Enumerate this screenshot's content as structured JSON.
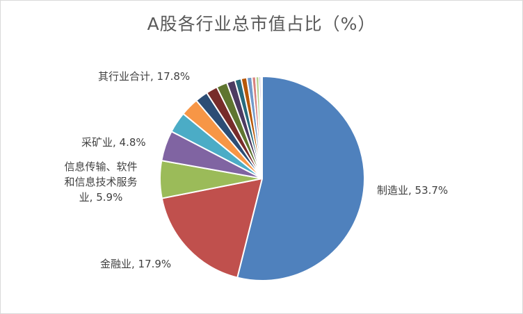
{
  "chart_data": {
    "type": "pie",
    "title": "A股各行业总市值占比（%）",
    "slices": [
      {
        "name": "制造业",
        "value": 53.7,
        "label": "制造业, 53.7%",
        "color": "#4f81bd"
      },
      {
        "name": "金融业",
        "value": 17.9,
        "label": "金融业, 17.9%",
        "color": "#c0504d"
      },
      {
        "name": "信息传输、软件和信息技术服务业",
        "value": 5.9,
        "label_lines": [
          "信息传输、软件",
          "和信息技术服务",
          "业, 5.9%"
        ],
        "color": "#9bbb59"
      },
      {
        "name": "采矿业",
        "value": 4.8,
        "label": "采矿业, 4.8%",
        "color": "#8064a2"
      },
      {
        "name": "unlabeled-1",
        "value": 3.3,
        "color": "#4bacc6"
      },
      {
        "name": "unlabeled-2",
        "value": 2.9,
        "color": "#f79646"
      },
      {
        "name": "unlabeled-3",
        "value": 2.0,
        "color": "#2c4d75"
      },
      {
        "name": "unlabeled-4",
        "value": 1.8,
        "color": "#772c2a"
      },
      {
        "name": "unlabeled-5",
        "value": 1.7,
        "color": "#5f7530"
      },
      {
        "name": "unlabeled-6",
        "value": 1.3,
        "color": "#4d3b62"
      },
      {
        "name": "unlabeled-7",
        "value": 1.0,
        "color": "#276a7c"
      },
      {
        "name": "unlabeled-8",
        "value": 0.9,
        "color": "#b65708"
      },
      {
        "name": "unlabeled-9",
        "value": 0.8,
        "color": "#729aca"
      },
      {
        "name": "unlabeled-10",
        "value": 0.6,
        "color": "#d7827f"
      },
      {
        "name": "unlabeled-11",
        "value": 0.5,
        "color": "#b4cf8b"
      },
      {
        "name": "unlabeled-12",
        "value": 0.3,
        "color": "#a08fbb"
      },
      {
        "name": "unlabeled-13",
        "value": 0.2,
        "color": "#89c6d8"
      }
    ],
    "group_label": "其行业合计, 17.8%",
    "start_angle_deg": 0,
    "direction": "clockwise",
    "legend": "none"
  }
}
